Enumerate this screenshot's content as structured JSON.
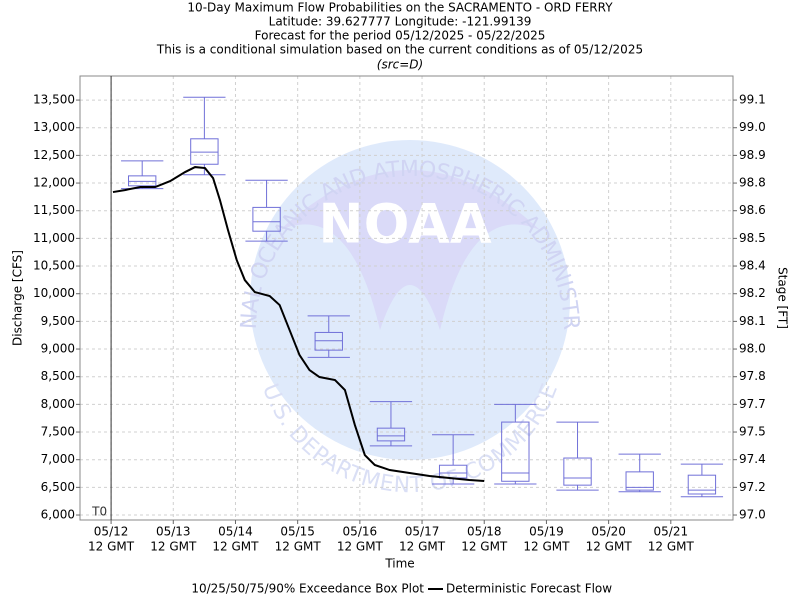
{
  "chart_data": {
    "type": "box",
    "title": "10-Day Maximum Flow Probabilities on the SACRAMENTO - ORD FERRY",
    "subtitle_lines": [
      "Latitude: 39.627777 Longitude: -121.99139",
      "Forecast for the period 05/12/2025 - 05/22/2025",
      "This is a conditional simulation based on the current conditions as of 05/12/2025"
    ],
    "source": "(src=D)",
    "x_label": "Time",
    "y_label": "Discharge [CFS]",
    "y2_label": "Stage [FT]",
    "t0_label": "T0",
    "watermark": {
      "logo": "NOAA",
      "ring_top": "NATIONAL OCEANIC AND ATMOSPHERIC ADMINISTRATION",
      "ring_bottom": "U.S. DEPARTMENT OF COMMERCE"
    },
    "xlim": [
      -0.5,
      10
    ],
    "xticks": [
      {
        "value": 0,
        "label": "05/12"
      },
      {
        "value": 1,
        "label": "05/13"
      },
      {
        "value": 2,
        "label": "05/14"
      },
      {
        "value": 3,
        "label": "05/15"
      },
      {
        "value": 4,
        "label": "05/16"
      },
      {
        "value": 5,
        "label": "05/17"
      },
      {
        "value": 6,
        "label": "05/18"
      },
      {
        "value": 7,
        "label": "05/19"
      },
      {
        "value": 8,
        "label": "05/20"
      },
      {
        "value": 9,
        "label": "05/21"
      }
    ],
    "xtick_sublabel": "12 GMT",
    "ylim": [
      5910,
      13935
    ],
    "yticks": [
      {
        "value": 6000,
        "label": "6,000"
      },
      {
        "value": 6500,
        "label": "6,500"
      },
      {
        "value": 7000,
        "label": "7,000"
      },
      {
        "value": 7500,
        "label": "7,500"
      },
      {
        "value": 8000,
        "label": "8,000"
      },
      {
        "value": 8500,
        "label": "8,500"
      },
      {
        "value": 9000,
        "label": "9,000"
      },
      {
        "value": 9500,
        "label": "9,500"
      },
      {
        "value": 10000,
        "label": "10,000"
      },
      {
        "value": 10500,
        "label": "10,500"
      },
      {
        "value": 11000,
        "label": "11,000"
      },
      {
        "value": 11500,
        "label": "11,500"
      },
      {
        "value": 12000,
        "label": "12,000"
      },
      {
        "value": 12500,
        "label": "12,500"
      },
      {
        "value": 13000,
        "label": "13,000"
      },
      {
        "value": 13500,
        "label": "13,500"
      }
    ],
    "y2ticks": [
      {
        "value": 97.0,
        "label": "97.0"
      },
      {
        "value": 97.2,
        "label": "97.2"
      },
      {
        "value": 97.4,
        "label": "97.4"
      },
      {
        "value": 97.5,
        "label": "97.5"
      },
      {
        "value": 97.7,
        "label": "97.7"
      },
      {
        "value": 97.8,
        "label": "97.8"
      },
      {
        "value": 98.0,
        "label": "98.0"
      },
      {
        "value": 98.1,
        "label": "98.1"
      },
      {
        "value": 98.2,
        "label": "98.2"
      },
      {
        "value": 98.4,
        "label": "98.4"
      },
      {
        "value": 98.5,
        "label": "98.5"
      },
      {
        "value": 98.6,
        "label": "98.6"
      },
      {
        "value": 98.8,
        "label": "98.8"
      },
      {
        "value": 98.9,
        "label": "98.9"
      },
      {
        "value": 99.0,
        "label": "99.0"
      },
      {
        "value": 99.1,
        "label": "99.1"
      }
    ],
    "grid": true,
    "series": [
      {
        "name": "10/25/50/75/90% Exceedance Box Plot",
        "type": "box",
        "color": "#7070d8",
        "x": [
          0.5,
          1.5,
          2.5,
          3.5,
          4.5,
          5.5,
          6.5,
          7.5,
          8.5,
          9.5
        ],
        "p10": [
          11900,
          12150,
          10950,
          8850,
          7250,
          6560,
          6560,
          6450,
          6420,
          6330
        ],
        "p25": [
          11950,
          12340,
          11130,
          8980,
          7340,
          6670,
          6610,
          6540,
          6450,
          6380
        ],
        "median": [
          12030,
          12560,
          11300,
          9150,
          7430,
          6760,
          6760,
          6670,
          6500,
          6450
        ],
        "p75": [
          12130,
          12800,
          11560,
          9300,
          7570,
          6900,
          7680,
          7030,
          6780,
          6720
        ],
        "p90": [
          12400,
          13550,
          12050,
          9600,
          8050,
          7450,
          8000,
          7680,
          7100,
          6920
        ]
      },
      {
        "name": "Deterministic Forecast Flow",
        "type": "line",
        "color": "#000000",
        "x": [
          0.03,
          0.22,
          0.47,
          0.71,
          0.95,
          1.19,
          1.35,
          1.51,
          1.64,
          1.75,
          1.88,
          2.02,
          2.15,
          2.31,
          2.55,
          2.71,
          2.87,
          3.03,
          3.19,
          3.35,
          3.6,
          3.76,
          3.92,
          4.08,
          4.24,
          4.48,
          4.8,
          5.12,
          5.44,
          5.76,
          6.0
        ],
        "values": [
          11837,
          11873,
          11928,
          11928,
          12036,
          12199,
          12289,
          12271,
          12090,
          11693,
          11150,
          10608,
          10247,
          10030,
          9958,
          9795,
          9343,
          8891,
          8620,
          8494,
          8440,
          8259,
          7626,
          7084,
          6904,
          6813,
          6759,
          6705,
          6669,
          6632,
          6614
        ]
      }
    ]
  }
}
